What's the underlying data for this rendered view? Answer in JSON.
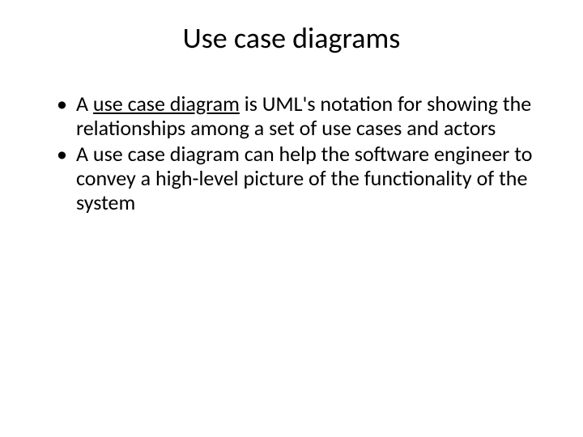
{
  "slide": {
    "title": "Use case diagrams",
    "title_fontsize": 36,
    "title_color": "#000000",
    "background_color": "#ffffff",
    "body_fontsize": 26,
    "body_color": "#000000",
    "bullets": [
      {
        "prefix": "A ",
        "underlined": "use case diagram",
        "suffix": " is UML's notation for showing the relationships among a set of use cases and actors"
      },
      {
        "prefix": "",
        "underlined": "",
        "suffix": "A use case diagram can help the software engineer to convey a high-level picture of the functionality of the system"
      }
    ]
  }
}
